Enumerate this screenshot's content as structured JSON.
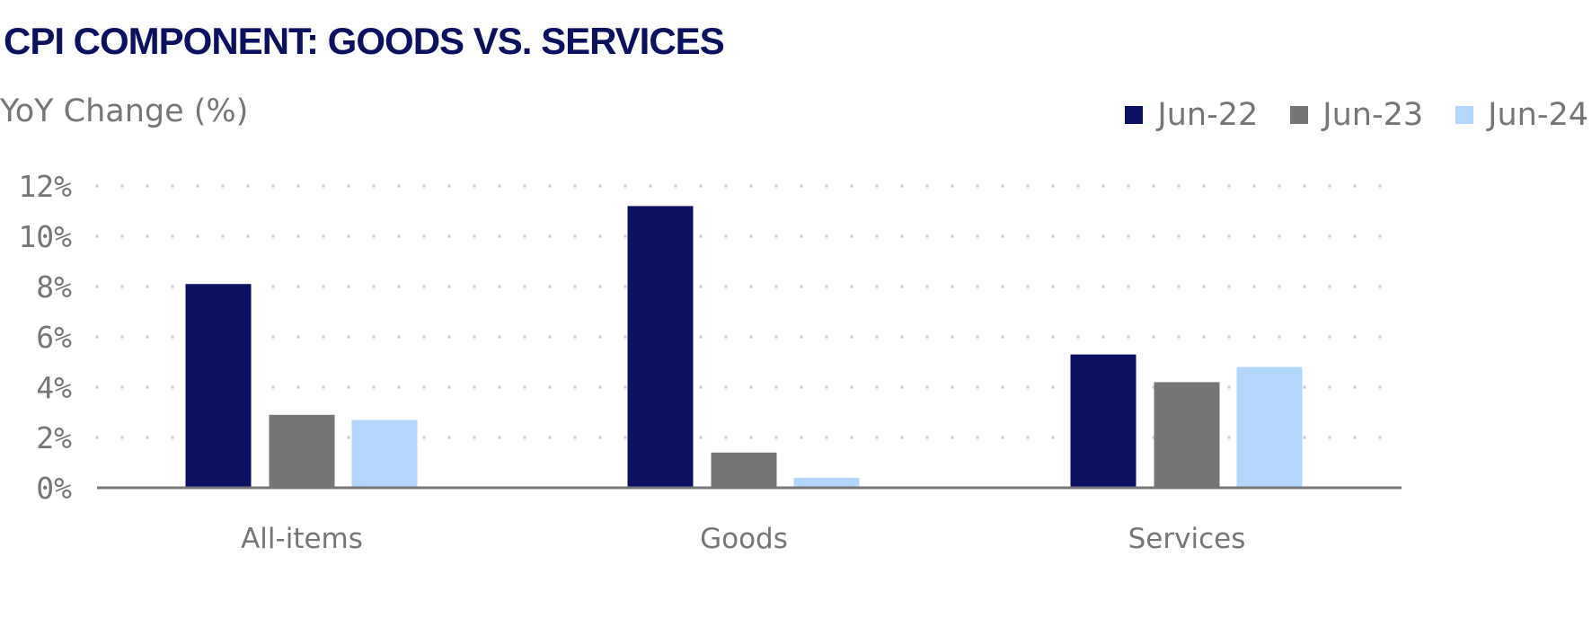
{
  "chart_data": {
    "type": "bar",
    "title": "CPI COMPONENT: GOODS VS. SERVICES",
    "ylabel": "YoY Change (%)",
    "xlabel": "",
    "categories": [
      "All-items",
      "Goods",
      "Services"
    ],
    "series": [
      {
        "name": "Jun-22",
        "color": "#0b1160",
        "values": [
          8.1,
          11.2,
          5.3
        ]
      },
      {
        "name": "Jun-23",
        "color": "#767676",
        "values": [
          2.9,
          1.4,
          4.2
        ]
      },
      {
        "name": "Jun-24",
        "color": "#b3d7fc",
        "values": [
          2.7,
          0.4,
          4.8
        ]
      }
    ],
    "ylim": [
      0,
      12
    ],
    "yticks": [
      0,
      2,
      4,
      6,
      8,
      10,
      12
    ],
    "ytick_labels": [
      "0%",
      "2%",
      "4%",
      "6%",
      "8%",
      "10%",
      "12%"
    ],
    "grid": true,
    "legend_position": "top-right"
  }
}
